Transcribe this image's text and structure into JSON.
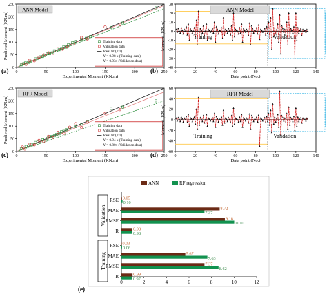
{
  "chart_data": [
    {
      "panel": "(a)",
      "type": "scatter",
      "title": "ANN Model",
      "xlabel": "Experimental Moment (KN.m)",
      "ylabel": "Predicted Moment (KN.m)",
      "xlim": [
        0,
        250
      ],
      "ylim": [
        0,
        250
      ],
      "xticks": [
        0,
        50,
        100,
        150,
        200,
        250
      ],
      "yticks": [
        0,
        50,
        100,
        150,
        200,
        250
      ],
      "legend": [
        "Training data",
        "Validation data",
        "Ideal fit (1:1)",
        "Y = 0.98 x (Training data)",
        "Y = 0.93x (Validation data)"
      ],
      "legend_position": "bottom-right",
      "fit_slopes": {
        "training": 0.98,
        "validation": 0.93
      },
      "series": [
        {
          "name": "Training data",
          "points": [
            [
              8,
              10
            ],
            [
              12,
              15
            ],
            [
              15,
              18
            ],
            [
              18,
              22
            ],
            [
              20,
              20
            ],
            [
              24,
              25
            ],
            [
              28,
              30
            ],
            [
              32,
              34
            ],
            [
              36,
              35
            ],
            [
              40,
              42
            ],
            [
              44,
              43
            ],
            [
              48,
              47
            ],
            [
              52,
              55
            ],
            [
              56,
              54
            ],
            [
              60,
              58
            ],
            [
              64,
              66
            ],
            [
              68,
              65
            ],
            [
              72,
              70
            ],
            [
              76,
              75
            ],
            [
              80,
              82
            ],
            [
              84,
              80
            ],
            [
              88,
              90
            ],
            [
              95,
              98
            ],
            [
              100,
              103
            ],
            [
              110,
              112
            ],
            [
              118,
              115
            ],
            [
              125,
              122
            ],
            [
              160,
              158
            ],
            [
              180,
              175
            ],
            [
              236,
              235
            ]
          ]
        },
        {
          "name": "Validation data",
          "points": [
            [
              10,
              14
            ],
            [
              16,
              12
            ],
            [
              22,
              28
            ],
            [
              30,
              26
            ],
            [
              38,
              40
            ],
            [
              46,
              50
            ],
            [
              54,
              58
            ],
            [
              62,
              56
            ],
            [
              70,
              74
            ],
            [
              78,
              72
            ],
            [
              86,
              84
            ],
            [
              96,
              92
            ],
            [
              110,
              118
            ],
            [
              120,
              112
            ],
            [
              150,
              160
            ],
            [
              175,
              160
            ]
          ]
        }
      ]
    },
    {
      "panel": "(b)",
      "type": "line",
      "title": "ANN Model",
      "xlabel": "Data point (No.)",
      "ylabel": "Moment (KN.m)",
      "xlim": [
        0,
        140
      ],
      "ylim": [
        -40,
        30
      ],
      "xticks": [
        0,
        20,
        40,
        60,
        80,
        100,
        120,
        140
      ],
      "yticks": [
        -40,
        -30,
        -20,
        -10,
        0,
        10,
        20,
        30
      ],
      "region_labels": [
        "Training",
        "Validation"
      ],
      "split_at": 92,
      "series": [
        {
          "name": "Error",
          "values": [
            2,
            -1,
            3,
            0,
            -2,
            4,
            1,
            -3,
            2,
            0,
            5,
            -4,
            8,
            -10,
            3,
            1,
            -2,
            0,
            4,
            -6,
            12,
            -15,
            22,
            -8,
            3,
            1,
            -2,
            6,
            -5,
            0,
            8,
            -10,
            2,
            1,
            -1,
            0,
            3,
            -2,
            10,
            -12,
            5,
            2,
            -3,
            1,
            0,
            4,
            -8,
            15,
            -5,
            2,
            1,
            -2,
            3,
            0,
            -4,
            6,
            -10,
            20,
            -6,
            2,
            1,
            0,
            -3,
            4,
            -2,
            8,
            -12,
            3,
            1,
            -1,
            2,
            0,
            -5,
            9,
            -15,
            6,
            3,
            -2,
            1,
            0,
            4,
            -3,
            7,
            -9,
            2,
            1,
            -1,
            0,
            3,
            -4,
            5,
            -2,
            10,
            -8,
            15,
            -20,
            25,
            -6,
            4,
            -3,
            2,
            8,
            -12,
            18,
            -25,
            6,
            3,
            -1,
            2,
            -4,
            10,
            -15,
            20,
            -8,
            3,
            1,
            -2,
            5,
            -30,
            20,
            -10,
            4,
            -2,
            1,
            3,
            -5,
            2,
            0,
            1,
            -1,
            2,
            0
          ]
        },
        {
          "name": "Zero",
          "values": [
            0
          ]
        }
      ]
    },
    {
      "panel": "(c)",
      "type": "scatter",
      "title": "RFR Model",
      "xlabel": "Experimental Moment (KN.m)",
      "ylabel": "Predicted Moment (KN.m)",
      "xlim": [
        0,
        250
      ],
      "ylim": [
        0,
        250
      ],
      "xticks": [
        0,
        50,
        100,
        150,
        200,
        250
      ],
      "yticks": [
        0,
        50,
        100,
        150,
        200,
        250
      ],
      "legend": [
        "Training data",
        "Validation data",
        "Ideal fit (1:1)",
        "Y = 0.94 x (Training data)",
        "Y = 0.80x (Validation data)"
      ],
      "legend_position": "bottom-right",
      "fit_slopes": {
        "training": 0.94,
        "validation": 0.8
      },
      "series": [
        {
          "name": "Training data",
          "points": [
            [
              8,
              12
            ],
            [
              12,
              14
            ],
            [
              16,
              20
            ],
            [
              20,
              22
            ],
            [
              24,
              28
            ],
            [
              28,
              27
            ],
            [
              32,
              36
            ],
            [
              36,
              38
            ],
            [
              40,
              40
            ],
            [
              44,
              46
            ],
            [
              48,
              48
            ],
            [
              52,
              52
            ],
            [
              56,
              58
            ],
            [
              60,
              60
            ],
            [
              64,
              62
            ],
            [
              68,
              68
            ],
            [
              72,
              70
            ],
            [
              76,
              78
            ],
            [
              80,
              80
            ],
            [
              84,
              86
            ],
            [
              90,
              92
            ],
            [
              96,
              100
            ],
            [
              100,
              98
            ],
            [
              110,
              108
            ],
            [
              120,
              118
            ],
            [
              160,
              170
            ],
            [
              180,
              175
            ],
            [
              236,
              200
            ]
          ]
        },
        {
          "name": "Validation data",
          "points": [
            [
              10,
              18
            ],
            [
              14,
              10
            ],
            [
              22,
              30
            ],
            [
              30,
              26
            ],
            [
              38,
              44
            ],
            [
              46,
              40
            ],
            [
              54,
              60
            ],
            [
              62,
              54
            ],
            [
              70,
              76
            ],
            [
              80,
              72
            ],
            [
              90,
              96
            ],
            [
              100,
              110
            ],
            [
              110,
              95
            ],
            [
              120,
              115
            ],
            [
              150,
              150
            ],
            [
              175,
              165
            ]
          ]
        }
      ]
    },
    {
      "panel": "(d)",
      "type": "line",
      "title": "RFR Model",
      "xlabel": "Data point (No.)",
      "ylabel": "Moment (KN.m)",
      "xlim": [
        0,
        140
      ],
      "ylim": [
        -60,
        60
      ],
      "xticks": [
        0,
        20,
        40,
        60,
        80,
        100,
        120,
        140
      ],
      "yticks": [
        -60,
        -40,
        -20,
        0,
        20,
        40,
        60
      ],
      "region_labels": [
        "Training",
        "Validation"
      ],
      "split_at": 92,
      "series": [
        {
          "name": "Error",
          "values": [
            3,
            -2,
            4,
            1,
            -3,
            5,
            2,
            -4,
            3,
            0,
            6,
            -5,
            10,
            -12,
            4,
            2,
            -3,
            1,
            5,
            -8,
            20,
            -18,
            42,
            -10,
            4,
            1,
            -3,
            8,
            -6,
            0,
            10,
            -12,
            3,
            1,
            -2,
            0,
            4,
            -3,
            12,
            -14,
            6,
            2,
            -4,
            1,
            0,
            5,
            -10,
            18,
            -6,
            3,
            1,
            -3,
            4,
            0,
            -5,
            8,
            -12,
            22,
            -8,
            3,
            1,
            0,
            -4,
            5,
            -3,
            10,
            -14,
            4,
            1,
            -2,
            3,
            0,
            -6,
            11,
            -18,
            8,
            4,
            -3,
            1,
            0,
            5,
            -4,
            9,
            -50,
            3,
            1,
            -2,
            0,
            4,
            -5,
            6,
            -3,
            12,
            -10,
            18,
            -24,
            30,
            -8,
            5,
            -4,
            3,
            10,
            -14,
            54,
            -30,
            8,
            4,
            -2,
            3,
            -5,
            12,
            -18,
            24,
            -10,
            4,
            1,
            -3,
            6,
            -20,
            22,
            -12,
            5,
            -3,
            1,
            4,
            -6,
            3,
            0,
            1,
            -2,
            3,
            0
          ]
        }
      ]
    },
    {
      "panel": "(e)",
      "type": "bar",
      "orientation": "horizontal",
      "legend": [
        "ANN",
        "RF regression"
      ],
      "legend_position": "top",
      "xlim": [
        0,
        12
      ],
      "xticks": [
        0,
        2,
        4,
        6,
        8,
        10,
        12
      ],
      "groups": [
        {
          "name": "Validation",
          "categories": [
            "RSE",
            "MAE",
            "RMSE",
            "R"
          ]
        },
        {
          "name": "Training",
          "categories": [
            "RSE",
            "MAE",
            "RMSE",
            "R"
          ]
        }
      ],
      "series": [
        {
          "name": "ANN",
          "values": [
            0.05,
            8.72,
            9.18,
            0.98,
            0.03,
            5.67,
            7.37,
            0.99
          ],
          "labels": [
            "0.05",
            "8.72",
            "9.18",
            "0.98",
            "0.03",
            "5.67",
            "7.37",
            "0.99"
          ]
        },
        {
          "name": "RF regression",
          "values": [
            0.1,
            7.37,
            10.01,
            0.98,
            0.06,
            7.63,
            8.62,
            0.97
          ],
          "labels": [
            "0.10",
            "7.37",
            "10.01",
            "0.98",
            "0.06",
            "7.63",
            "8.62",
            "0.97"
          ]
        }
      ]
    }
  ],
  "panel_labels": [
    "(a)",
    "(b)",
    "(c)",
    "(d)",
    "(e)"
  ],
  "colors": {
    "ann_bar": "#6b2a15",
    "rf_bar": "#12924f",
    "validation_text": "#3a8a4a",
    "training_text": "#c0602a",
    "legend_border": "#cc2a2a",
    "title_box": "#d9d9d9",
    "error_line": "#d01818",
    "zero_line": "#111111",
    "band": "#ffc84a",
    "validation_box": "#33b5e5",
    "fit_training": "#e08080",
    "fit_validation": "#2f8f3f",
    "ideal_fit": "#222222",
    "train_marker": "#2e8b3a",
    "valid_marker": "#d03030"
  },
  "icons": {
    "train_marker": "square-outline",
    "valid_marker": "circle-outline",
    "series_marker": "triangle"
  }
}
